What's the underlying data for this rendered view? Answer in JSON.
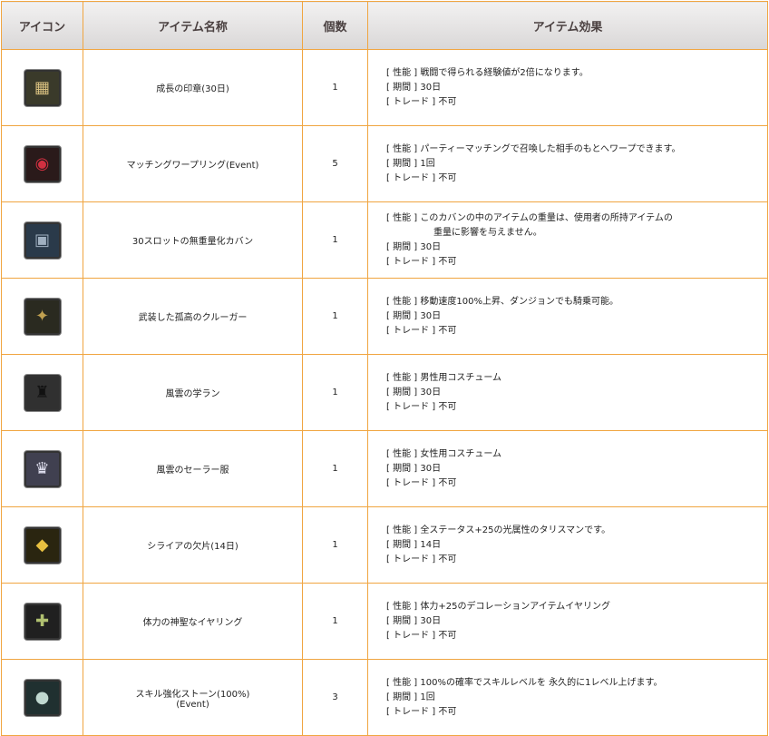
{
  "headers": {
    "icon": "アイコン",
    "name": "アイテム名称",
    "count": "個数",
    "effect": "アイテム効果"
  },
  "labels": {
    "perf": "[ 性能 ]",
    "period": "[ 期間 ]",
    "trade": "[ トレード ]"
  },
  "items": [
    {
      "icon": "seal-icon",
      "glyph": "▦",
      "bg": "#3a3a2a",
      "fg": "#d8c080",
      "name": "成長の印章(30日)",
      "count": "1",
      "perf": "戦闘で得られる経験値が2倍になります。",
      "period": "30日",
      "trade": "不可"
    },
    {
      "icon": "ring-icon",
      "glyph": "◉",
      "bg": "#2a1a1a",
      "fg": "#d03040",
      "name": "マッチングワープリング(Event)",
      "count": "5",
      "perf": "パーティーマッチングで召喚した相手のもとへワープできます。",
      "period": "1回",
      "trade": "不可"
    },
    {
      "icon": "bag-icon",
      "glyph": "▣",
      "bg": "#2a3a4a",
      "fg": "#a0b0c0",
      "name": "30スロットの無重量化カバン",
      "count": "1",
      "perf": "このカバンの中のアイテムの重量は、使用者の所持アイテムの",
      "perf2": "重量に影響を与えません。",
      "period": "30日",
      "trade": "不可"
    },
    {
      "icon": "mount-icon",
      "glyph": "✦",
      "bg": "#2a2a20",
      "fg": "#c0a050",
      "name": "武装した孤高のクルーガー",
      "count": "1",
      "perf": "移動速度100%上昇、ダンジョンでも騎乗可能。",
      "period": "30日",
      "trade": "不可"
    },
    {
      "icon": "costume-male-icon",
      "glyph": "♜",
      "bg": "#303030",
      "fg": "#111",
      "name": "風雲の学ラン",
      "count": "1",
      "perf": "男性用コスチューム",
      "period": "30日",
      "trade": "不可"
    },
    {
      "icon": "costume-female-icon",
      "glyph": "♛",
      "bg": "#404050",
      "fg": "#e0e0f0",
      "name": "風雲のセーラー服",
      "count": "1",
      "perf": "女性用コスチューム",
      "period": "30日",
      "trade": "不可"
    },
    {
      "icon": "talisman-icon",
      "glyph": "◆",
      "bg": "#2a2510",
      "fg": "#e8c040",
      "name": "シライアの欠片(14日)",
      "count": "1",
      "perf": " 全ステータス+25の光属性のタリスマンです。",
      "period": "14日",
      "trade": "不可"
    },
    {
      "icon": "earring-icon",
      "glyph": "✚",
      "bg": "#202020",
      "fg": "#b0c070",
      "name": "体力の神聖なイヤリング",
      "count": "1",
      "perf": "体力+25のデコレーションアイテムイヤリング",
      "period": "30日",
      "trade": "不可"
    },
    {
      "icon": "stone-icon",
      "glyph": "●",
      "bg": "#203030",
      "fg": "#c0d8d0",
      "name": "スキル強化ストーン(100%)",
      "name2": "(Event)",
      "count": "3",
      "perf": "100%の確率でスキルレベルを 永久的に1レベル上げます。",
      "period": "1回",
      "trade": "不可"
    }
  ]
}
